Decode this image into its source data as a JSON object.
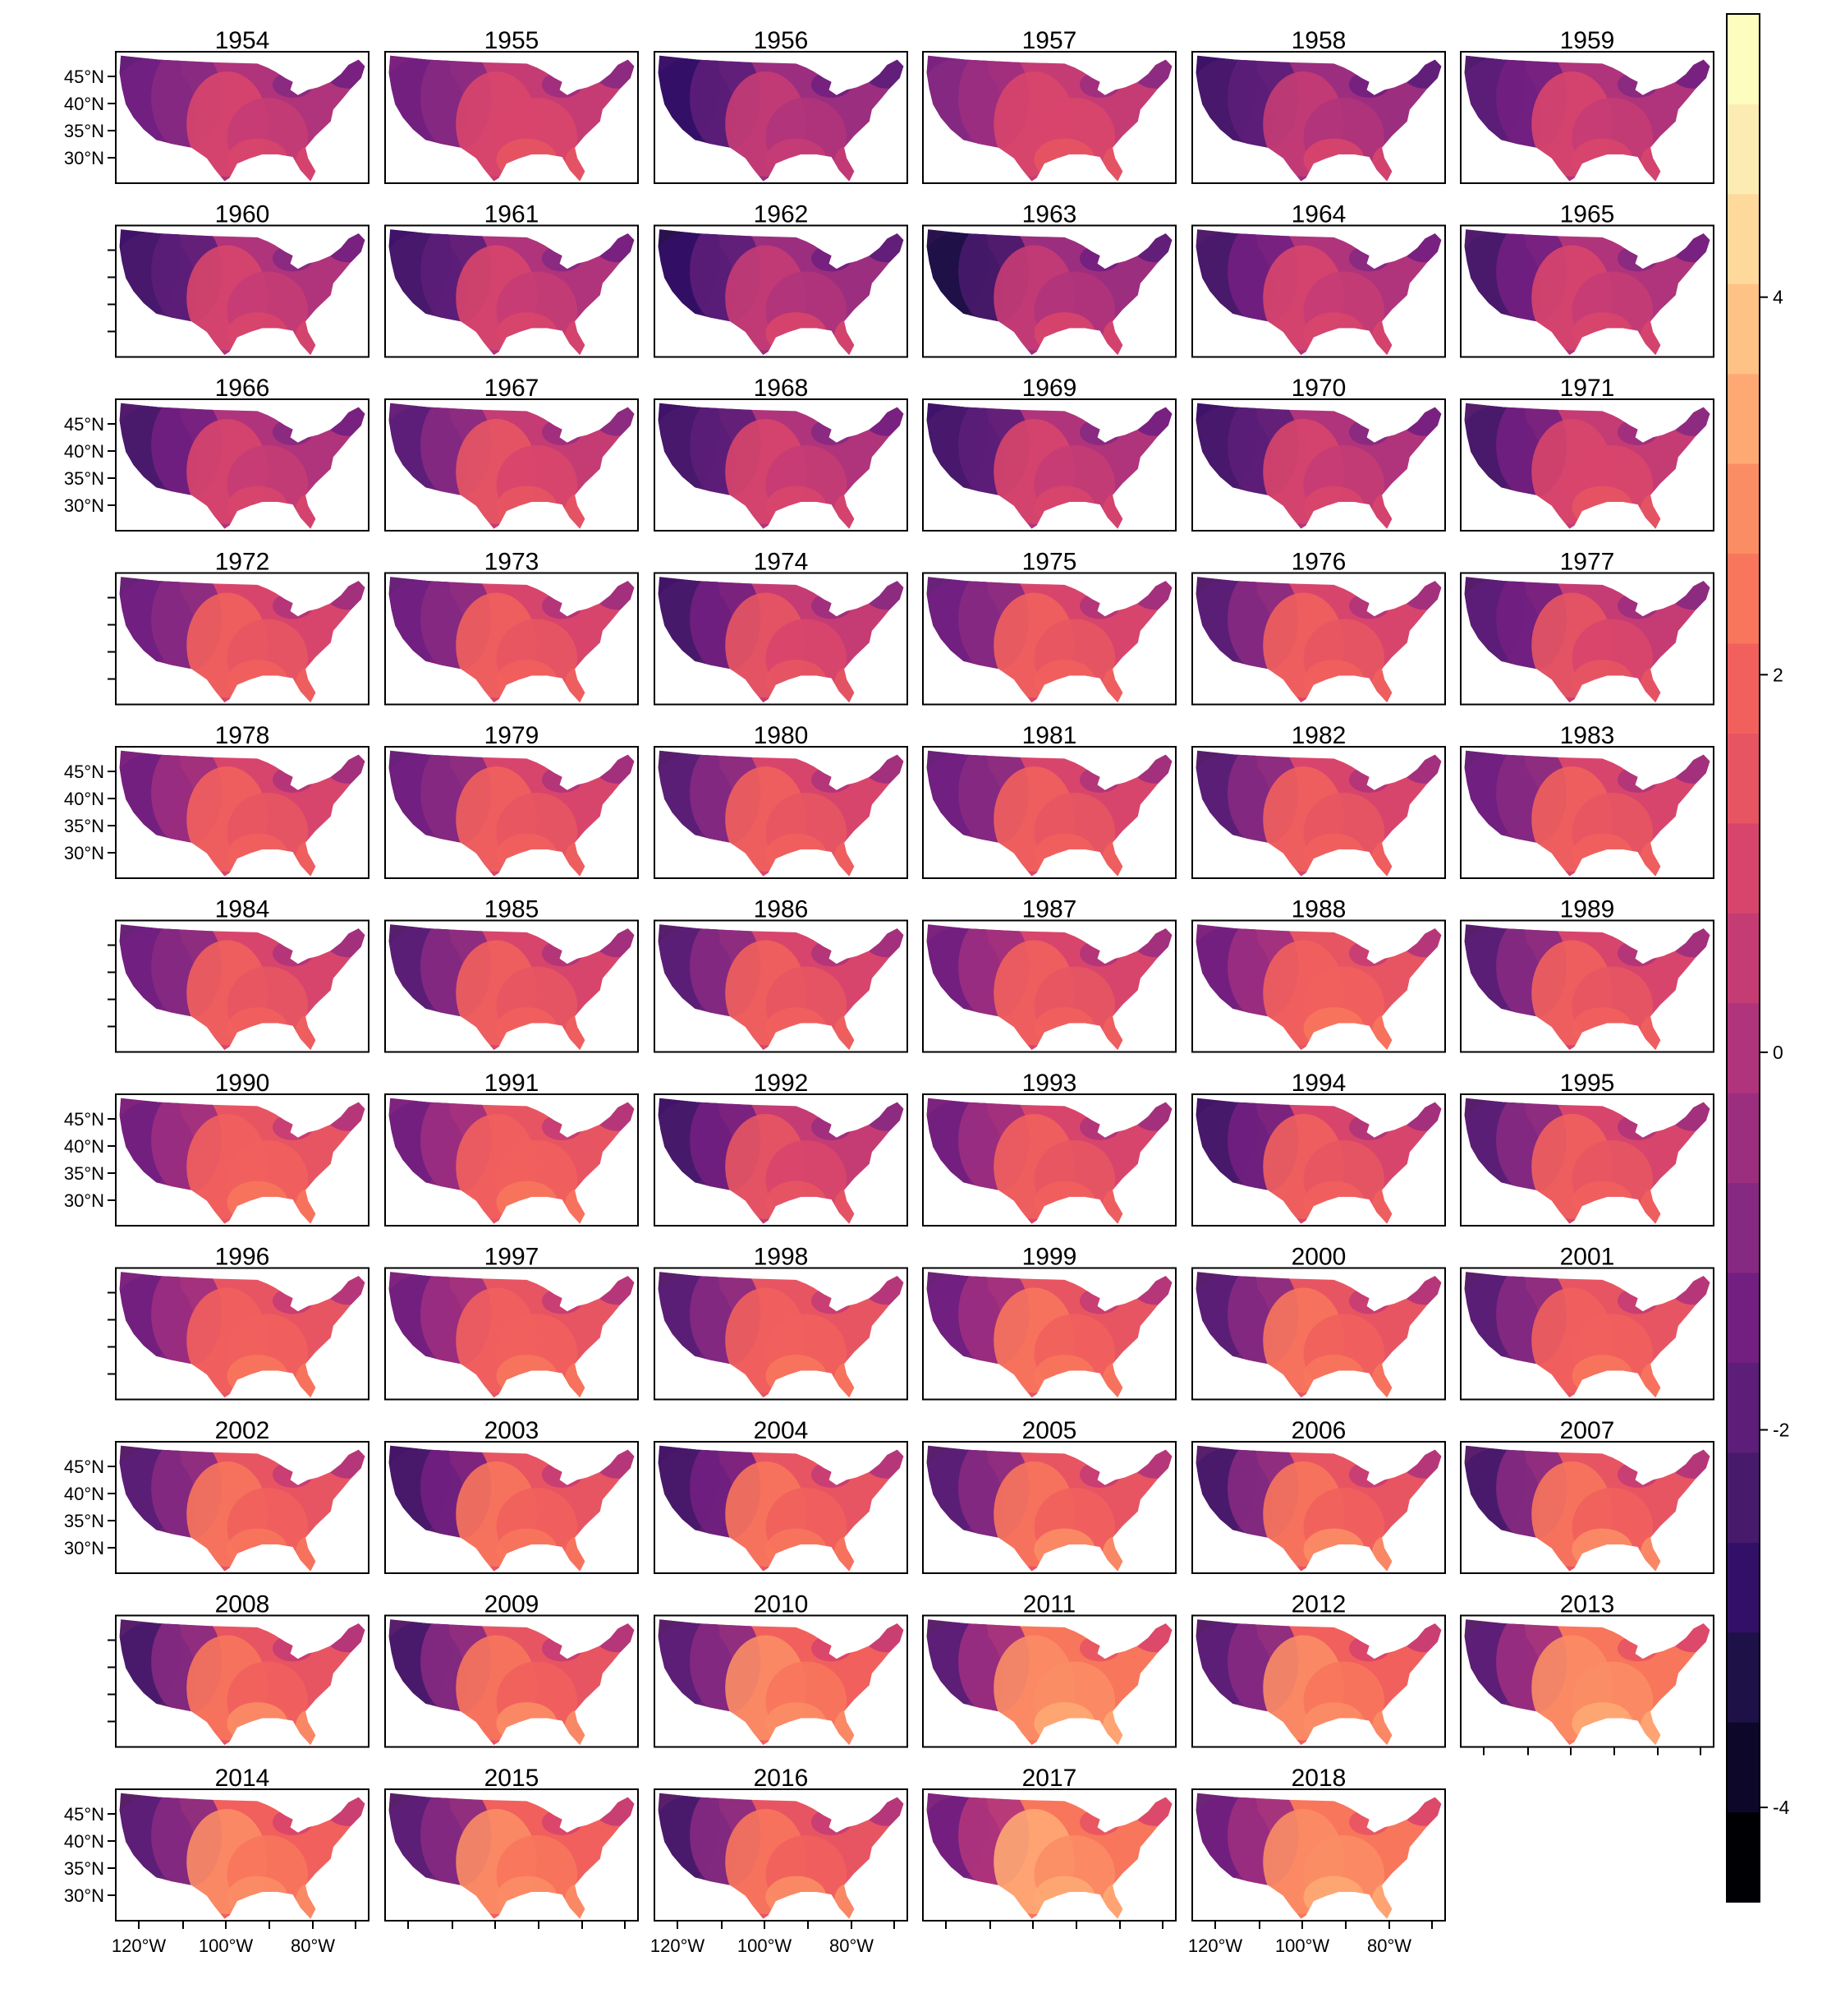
{
  "panels": [
    {
      "year": "1954",
      "warmth": 0.45,
      "dark": 0.35
    },
    {
      "year": "1955",
      "warmth": 0.48,
      "dark": 0.35
    },
    {
      "year": "1956",
      "warmth": 0.4,
      "dark": 0.5
    },
    {
      "year": "1957",
      "warmth": 0.48,
      "dark": 0.3
    },
    {
      "year": "1958",
      "warmth": 0.42,
      "dark": 0.45
    },
    {
      "year": "1959",
      "warmth": 0.45,
      "dark": 0.45
    },
    {
      "year": "1960",
      "warmth": 0.45,
      "dark": 0.55
    },
    {
      "year": "1961",
      "warmth": 0.45,
      "dark": 0.55
    },
    {
      "year": "1962",
      "warmth": 0.42,
      "dark": 0.55
    },
    {
      "year": "1963",
      "warmth": 0.42,
      "dark": 0.6
    },
    {
      "year": "1964",
      "warmth": 0.45,
      "dark": 0.5
    },
    {
      "year": "1965",
      "warmth": 0.45,
      "dark": 0.5
    },
    {
      "year": "1966",
      "warmth": 0.45,
      "dark": 0.5
    },
    {
      "year": "1967",
      "warmth": 0.5,
      "dark": 0.5
    },
    {
      "year": "1968",
      "warmth": 0.45,
      "dark": 0.55
    },
    {
      "year": "1969",
      "warmth": 0.45,
      "dark": 0.55
    },
    {
      "year": "1970",
      "warmth": 0.45,
      "dark": 0.55
    },
    {
      "year": "1971",
      "warmth": 0.48,
      "dark": 0.55
    },
    {
      "year": "1972",
      "warmth": 0.55,
      "dark": 0.55
    },
    {
      "year": "1973",
      "warmth": 0.55,
      "dark": 0.55
    },
    {
      "year": "1974",
      "warmth": 0.5,
      "dark": 0.6
    },
    {
      "year": "1975",
      "warmth": 0.55,
      "dark": 0.55
    },
    {
      "year": "1976",
      "warmth": 0.55,
      "dark": 0.6
    },
    {
      "year": "1977",
      "warmth": 0.5,
      "dark": 0.55
    },
    {
      "year": "1978",
      "warmth": 0.55,
      "dark": 0.5
    },
    {
      "year": "1979",
      "warmth": 0.55,
      "dark": 0.55
    },
    {
      "year": "1980",
      "warmth": 0.55,
      "dark": 0.6
    },
    {
      "year": "1981",
      "warmth": 0.55,
      "dark": 0.55
    },
    {
      "year": "1982",
      "warmth": 0.55,
      "dark": 0.6
    },
    {
      "year": "1983",
      "warmth": 0.55,
      "dark": 0.55
    },
    {
      "year": "1984",
      "warmth": 0.55,
      "dark": 0.55
    },
    {
      "year": "1985",
      "warmth": 0.55,
      "dark": 0.6
    },
    {
      "year": "1986",
      "warmth": 0.55,
      "dark": 0.6
    },
    {
      "year": "1987",
      "warmth": 0.55,
      "dark": 0.5
    },
    {
      "year": "1988",
      "warmth": 0.58,
      "dark": 0.55
    },
    {
      "year": "1989",
      "warmth": 0.55,
      "dark": 0.6
    },
    {
      "year": "1990",
      "warmth": 0.58,
      "dark": 0.55
    },
    {
      "year": "1991",
      "warmth": 0.58,
      "dark": 0.55
    },
    {
      "year": "1992",
      "warmth": 0.5,
      "dark": 0.6
    },
    {
      "year": "1993",
      "warmth": 0.55,
      "dark": 0.5
    },
    {
      "year": "1994",
      "warmth": 0.55,
      "dark": 0.7
    },
    {
      "year": "1995",
      "warmth": 0.55,
      "dark": 0.6
    },
    {
      "year": "1996",
      "warmth": 0.58,
      "dark": 0.55
    },
    {
      "year": "1997",
      "warmth": 0.58,
      "dark": 0.55
    },
    {
      "year": "1998",
      "warmth": 0.58,
      "dark": 0.7
    },
    {
      "year": "1999",
      "warmth": 0.6,
      "dark": 0.6
    },
    {
      "year": "2000",
      "warmth": 0.6,
      "dark": 0.7
    },
    {
      "year": "2001",
      "warmth": 0.58,
      "dark": 0.7
    },
    {
      "year": "2002",
      "warmth": 0.6,
      "dark": 0.75
    },
    {
      "year": "2003",
      "warmth": 0.6,
      "dark": 0.8
    },
    {
      "year": "2004",
      "warmth": 0.6,
      "dark": 0.8
    },
    {
      "year": "2005",
      "warmth": 0.62,
      "dark": 0.75
    },
    {
      "year": "2006",
      "warmth": 0.62,
      "dark": 0.8
    },
    {
      "year": "2007",
      "warmth": 0.62,
      "dark": 0.8
    },
    {
      "year": "2008",
      "warmth": 0.62,
      "dark": 0.8
    },
    {
      "year": "2009",
      "warmth": 0.62,
      "dark": 0.8
    },
    {
      "year": "2010",
      "warmth": 0.65,
      "dark": 0.85
    },
    {
      "year": "2011",
      "warmth": 0.68,
      "dark": 0.85
    },
    {
      "year": "2012",
      "warmth": 0.65,
      "dark": 0.85
    },
    {
      "year": "2013",
      "warmth": 0.68,
      "dark": 0.85
    },
    {
      "year": "2014",
      "warmth": 0.65,
      "dark": 0.8
    },
    {
      "year": "2015",
      "warmth": 0.65,
      "dark": 0.8
    },
    {
      "year": "2016",
      "warmth": 0.62,
      "dark": 0.8
    },
    {
      "year": "2017",
      "warmth": 0.7,
      "dark": 0.75
    },
    {
      "year": "2018",
      "warmth": 0.68,
      "dark": 0.8
    }
  ],
  "lat_ticks": [
    "45°N",
    "40°N",
    "35°N",
    "30°N"
  ],
  "lon_ticks": [
    "120°W",
    "100°W",
    "80°W"
  ],
  "colorbar": {
    "min": -4.5,
    "max": 5.5,
    "ticks": [
      "4",
      "2",
      "0",
      "-2",
      "-4"
    ],
    "tick_values": [
      4,
      2,
      0,
      -2,
      -4
    ],
    "palette": [
      "#000004",
      "#0d0829",
      "#1e1148",
      "#331067",
      "#481a6c",
      "#5c1e79",
      "#721f81",
      "#862982",
      "#9c2e7f",
      "#b0347b",
      "#c53c74",
      "#d8456c",
      "#e75563",
      "#f1605d",
      "#f8765c",
      "#fb8d65",
      "#fea973",
      "#fec287",
      "#fdd99c",
      "#fcecb4",
      "#fcfdbf"
    ]
  }
}
